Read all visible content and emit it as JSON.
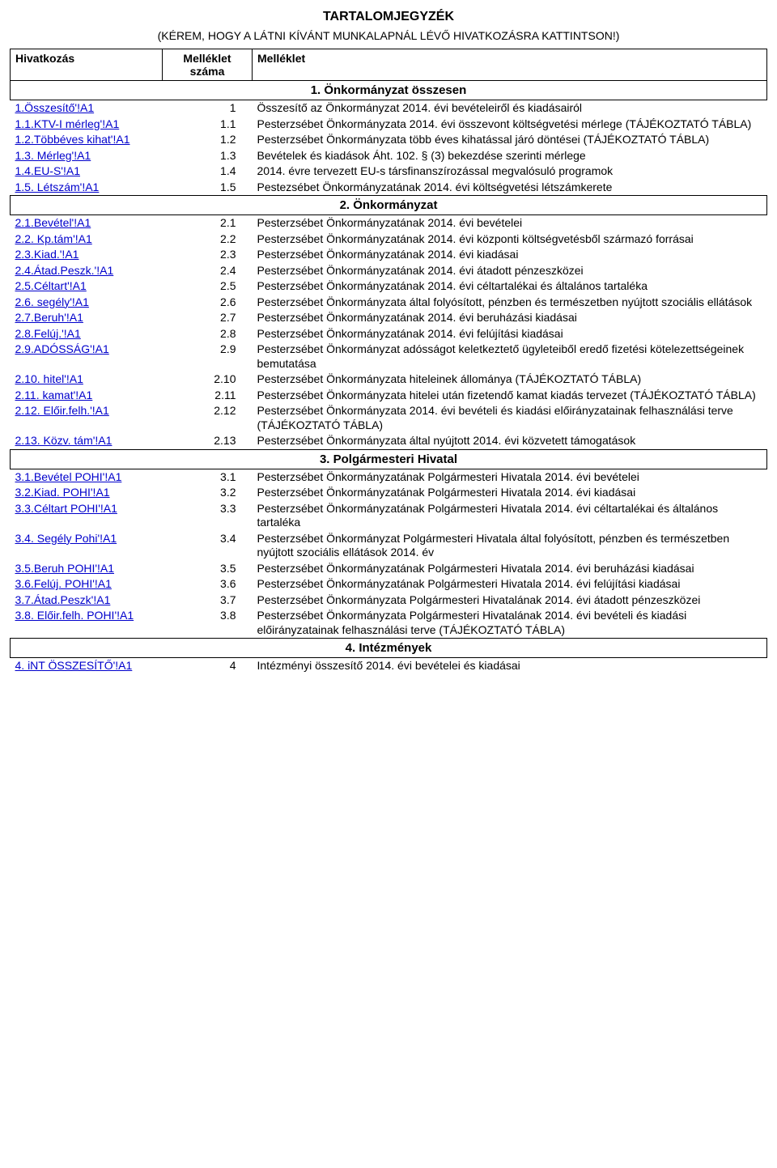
{
  "title": "TARTALOMJEGYZÉK",
  "subtitle": "(KÉREM, HOGY A LÁTNI KÍVÁNT MUNKALAPNÁL LÉVŐ HIVATKOZÁSRA KATTINTSON!)",
  "headers": {
    "ref": "Hivatkozás",
    "num_line1": "Melléklet",
    "num_line2": "száma",
    "desc": "Melléklet"
  },
  "sections": [
    {
      "title": "1. Önkormányzat összesen",
      "rows": [
        {
          "ref": "1.Összesítő'!A1",
          "num": "1",
          "desc": "Összesítő az Önkormányzat 2014. évi bevételeiről és kiadásairól"
        },
        {
          "ref": "1.1.KTV-I mérleg'!A1",
          "num": "1.1",
          "desc": "Pesterzsébet Önkormányzata 2014. évi összevont költségvetési mérlege (TÁJÉKOZTATÓ TÁBLA)"
        },
        {
          "ref": "1.2.Többéves kihat'!A1",
          "num": "1.2",
          "desc": "Pesterzsébet Önkormányzata több éves kihatással járó döntései (TÁJÉKOZTATÓ TÁBLA)"
        },
        {
          "ref": "1.3. Mérleg'!A1",
          "num": "1.3",
          "desc": "Bevételek és kiadások Áht. 102. § (3) bekezdése szerinti mérlege"
        },
        {
          "ref": "1.4.EU-S'!A1",
          "num": "1.4",
          "desc": "2014. évre tervezett EU-s társfinanszírozással megvalósuló programok"
        },
        {
          "ref": "1.5. Létszám'!A1",
          "num": "1.5",
          "desc": "Pestezsébet Önkormányzatának 2014. évi költségvetési létszámkerete"
        }
      ]
    },
    {
      "title": "2. Önkormányzat",
      "rows": [
        {
          "ref": "2.1.Bevétel'!A1",
          "num": "2.1",
          "desc": "Pesterzsébet Önkormányzatának 2014. évi bevételei"
        },
        {
          "ref": "2.2. Kp.tám'!A1",
          "num": "2.2",
          "desc": "Pesterzsébet Önkormányzatának 2014. évi központi költségvetésből származó forrásai"
        },
        {
          "ref": "2.3.Kiad.'!A1",
          "num": "2.3",
          "desc": "Pesterzsébet Önkormányzatának 2014. évi kiadásai"
        },
        {
          "ref": "2.4.Átad.Peszk.'!A1",
          "num": "2.4",
          "desc": "Pesterzsébet Önkormányzatának 2014. évi átadott pénzeszközei"
        },
        {
          "ref": "2.5.Céltart'!A1",
          "num": "2.5",
          "desc": "Pesterzsébet Önkormányzatának 2014. évi céltartalékai és általános tartaléka"
        },
        {
          "ref": "2.6. segély'!A1",
          "num": "2.6",
          "desc": "Pesterzsébet Önkormányzata által folyósított, pénzben és természetben nyújtott szociális ellátások"
        },
        {
          "ref": "2.7.Beruh'!A1",
          "num": "2.7",
          "desc": "Pesterzsébet Önkormányzatának 2014. évi beruházási kiadásai"
        },
        {
          "ref": "2.8.Felúj.'!A1",
          "num": "2.8",
          "desc": "Pesterzsébet Önkormányzatának 2014. évi felújítási kiadásai"
        },
        {
          "ref": "2.9.ADÓSSÁG'!A1",
          "num": "2.9",
          "desc": "Pesterzsébet Önkormányzat adósságot keletkeztető ügyleteiből eredő fizetési kötelezettségeinek bemutatása"
        },
        {
          "ref": "2.10. hitel'!A1",
          "num": "2.10",
          "desc": "Pesterzsébet Önkormányzata hiteleinek állománya (TÁJÉKOZTATÓ TÁBLA)"
        },
        {
          "ref": "2.11. kamat'!A1",
          "num": "2.11",
          "desc": "Pesterzsébet Önkormányzata hitelei után fizetendő kamat kiadás tervezet (TÁJÉKOZTATÓ TÁBLA)"
        },
        {
          "ref": "2.12. Előir.felh.'!A1",
          "num": "2.12",
          "desc": "Pesterzsébet Önkormányzata 2014. évi bevételi és kiadási előirányzatainak felhasználási terve (TÁJÉKOZTATÓ TÁBLA)"
        },
        {
          "ref": "2.13. Közv. tám'!A1",
          "num": "2.13",
          "desc": "Pesterzsébet Önkormányzata által nyújtott 2014. évi közvetett támogatások"
        }
      ]
    },
    {
      "title": "3. Polgármesteri Hivatal",
      "rows": [
        {
          "ref": "3.1.Bevétel POHI'!A1",
          "num": "3.1",
          "desc": "Pesterzsébet Önkormányzatának Polgármesteri Hivatala 2014. évi bevételei"
        },
        {
          "ref": "3.2.Kiad. POHI'!A1",
          "num": "3.2",
          "desc": "Pesterzsébet Önkormányzatának Polgármesteri Hivatala 2014. évi kiadásai"
        },
        {
          "ref": "3.3.Céltart POHI'!A1",
          "num": "3.3",
          "desc": "Pesterzsébet Önkormányzatának Polgármesteri Hivatala 2014. évi céltartalékai és általános tartaléka"
        },
        {
          "ref": "3.4. Segély Pohi'!A1",
          "num": "3.4",
          "desc": "Pesterzsébet Önkormányzat Polgármesteri Hivatala által folyósított, pénzben és természetben nyújtott szociális ellátások 2014. év"
        },
        {
          "ref": "3.5.Beruh POHI'!A1",
          "num": "3.5",
          "desc": "Pesterzsébet Önkormányzatának Polgármesteri Hivatala 2014. évi beruházási kiadásai"
        },
        {
          "ref": "3.6.Felúj. POHI'!A1",
          "num": "3.6",
          "desc": "Pesterzsébet Önkormányzatának Polgármesteri Hivatala 2014. évi felújítási kiadásai"
        },
        {
          "ref": "3.7.Átad.Peszk'!A1",
          "num": "3.7",
          "desc": "Pesterzsébet Önkormányzata Polgármesteri Hivatalának 2014. évi átadott pénzeszközei"
        },
        {
          "ref": "3.8. Előir.felh. POHI'!A1",
          "num": "3.8",
          "desc": "Pesterzsébet Önkormányzata Polgármesteri Hivatalának 2014. évi bevételi és kiadási előirányzatainak felhasználási terve (TÁJÉKOZTATÓ TÁBLA)"
        }
      ]
    },
    {
      "title": "4. Intézmények",
      "rows": [
        {
          "ref": "4. iNT ÖSSZESÍTŐ'!A1",
          "num": "4",
          "desc": "Intézményi összesítő 2014. évi bevételei és kiadásai"
        }
      ]
    }
  ]
}
